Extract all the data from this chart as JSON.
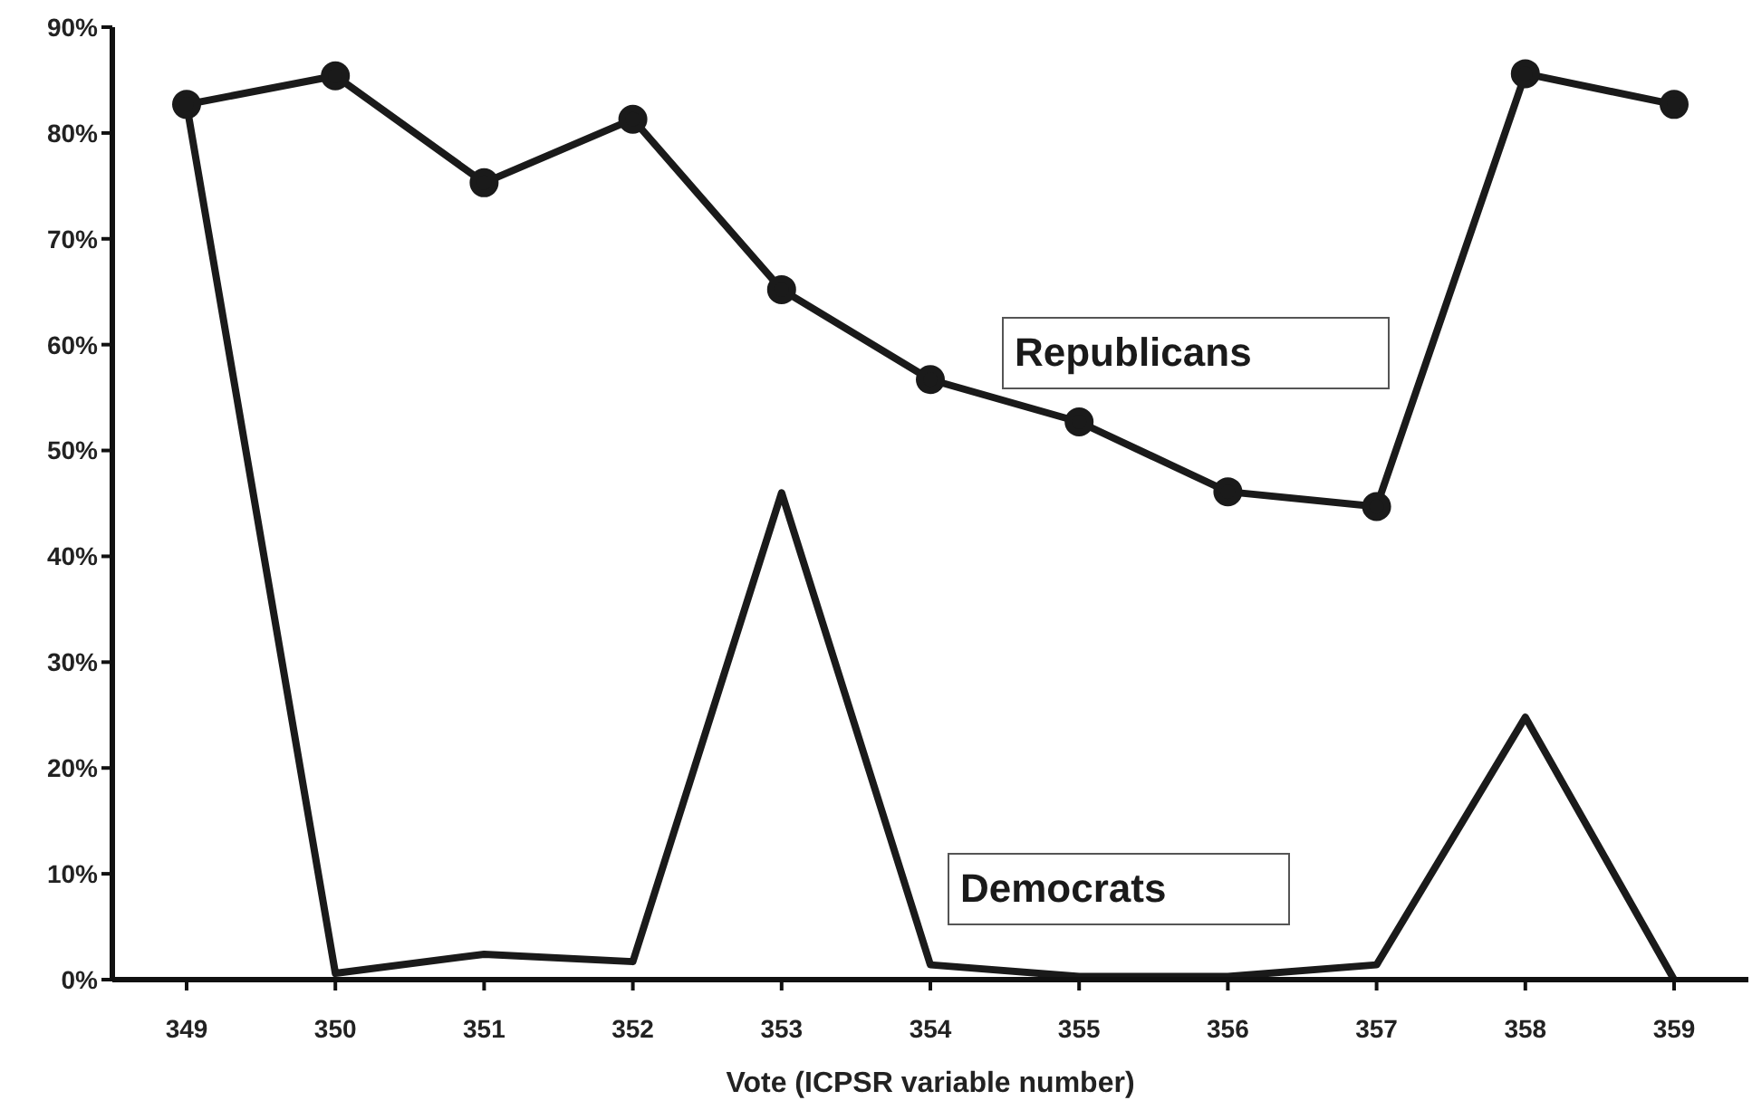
{
  "chart_data": {
    "type": "line",
    "xlabel": "Vote (ICPSR variable number)",
    "categories": [
      "349",
      "350",
      "351",
      "352",
      "353",
      "354",
      "355",
      "356",
      "357",
      "358",
      "359"
    ],
    "series": [
      {
        "name": "Republicans",
        "color": "#1a1a1a",
        "marker": "circle",
        "values": [
          82.7,
          85.4,
          75.3,
          81.3,
          65.2,
          56.7,
          52.7,
          46.1,
          44.7,
          85.6,
          82.7
        ]
      },
      {
        "name": "Democrats",
        "color": "#1a1a1a",
        "marker": "none",
        "values": [
          82.7,
          0.6,
          2.4,
          1.7,
          46,
          1.4,
          0.3,
          0.3,
          1.4,
          24.8,
          0
        ]
      }
    ],
    "ylim": [
      0,
      90
    ],
    "yticks": [
      {
        "value": 0,
        "label": "0%"
      },
      {
        "value": 10,
        "label": "10%"
      },
      {
        "value": 20,
        "label": "20%"
      },
      {
        "value": 30,
        "label": "30%"
      },
      {
        "value": 40,
        "label": "40%"
      },
      {
        "value": 50,
        "label": "50%"
      },
      {
        "value": 60,
        "label": "60%"
      },
      {
        "value": 70,
        "label": "70%"
      },
      {
        "value": 80,
        "label": "80%"
      },
      {
        "value": 90,
        "label": "90%"
      }
    ],
    "grid": false,
    "legend": false,
    "line_style": "solid"
  }
}
